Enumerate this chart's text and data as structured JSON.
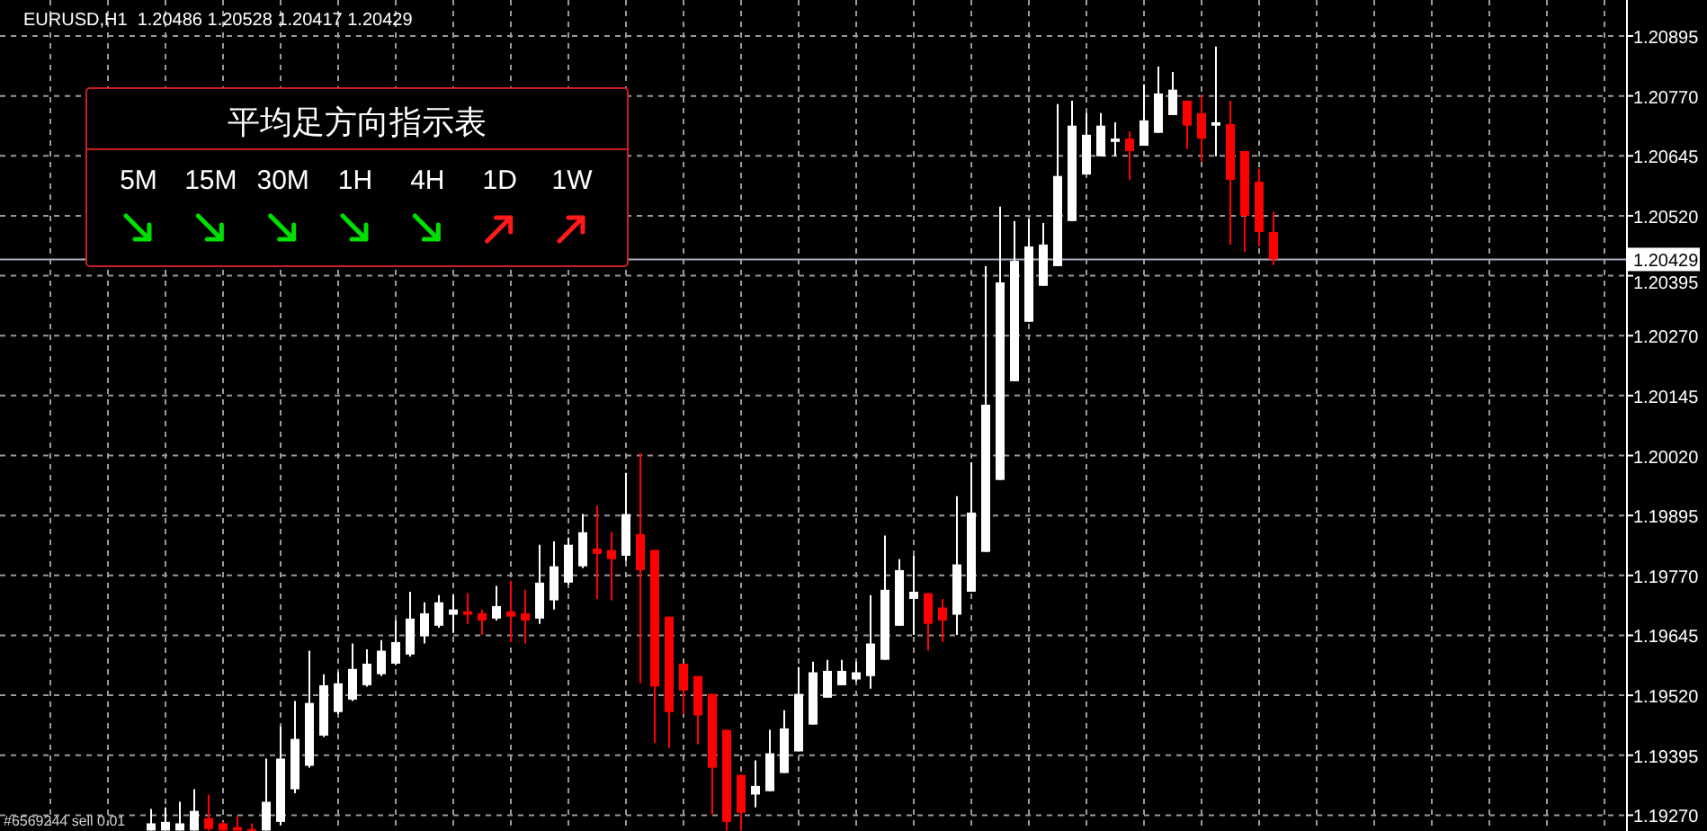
{
  "chart_data": [
    {
      "type": "candlestick",
      "title": "EURUSD,H1  1.20486 1.20528 1.20417 1.20429",
      "categories": [
        null,
        null,
        null,
        null,
        null,
        null,
        null,
        null,
        null,
        null,
        null,
        null,
        null,
        null,
        null,
        null,
        null,
        null,
        null,
        null,
        null,
        null,
        null,
        null,
        null,
        null,
        null,
        null,
        null,
        null,
        null,
        null,
        null,
        null,
        null,
        null,
        null,
        null,
        null,
        null,
        null,
        null,
        null,
        null,
        null,
        null,
        null,
        null,
        null,
        null,
        null,
        null,
        null,
        null,
        null,
        null,
        null,
        null,
        null,
        null,
        null,
        null,
        null,
        null,
        null,
        null,
        null,
        null,
        null,
        null,
        null,
        null,
        null,
        null,
        null,
        null,
        null,
        null,
        null,
        null,
        null,
        null,
        null,
        null,
        null,
        null,
        null,
        null,
        null,
        null,
        null,
        null,
        null,
        null,
        null,
        null,
        null,
        null,
        null,
        null,
        null,
        null,
        null,
        null,
        null,
        null,
        null,
        null,
        null,
        null,
        null,
        null,
        null
      ],
      "ohlc": [
        null,
        null,
        null,
        null,
        null,
        null,
        null,
        null,
        null,
        null,
        [
          1.19238,
          1.19283,
          1.19238,
          1.19253
        ],
        [
          1.19238,
          1.19286,
          1.19238,
          1.19256
        ],
        [
          1.19238,
          1.19298,
          1.19238,
          1.19253
        ],
        [
          1.19238,
          1.19324,
          1.19238,
          1.19279
        ],
        [
          1.19264,
          1.19313,
          1.19238,
          1.19241
        ],
        [
          1.19253,
          1.19256,
          1.19238,
          1.19238
        ],
        [
          1.19245,
          1.19268,
          1.19238,
          1.19238
        ],
        [
          1.19241,
          1.19253,
          1.19238,
          1.19238
        ],
        [
          1.19238,
          1.19388,
          1.19238,
          1.19298
        ],
        [
          1.19256,
          1.19455,
          1.19249,
          1.19388
        ],
        [
          1.19324,
          1.19508,
          1.19316,
          1.19429
        ],
        [
          1.19373,
          1.19613,
          1.19369,
          1.19504
        ],
        [
          1.19436,
          1.19564,
          1.19433,
          1.19541
        ],
        [
          1.19485,
          1.19568,
          1.19481,
          1.19545
        ],
        [
          1.19511,
          1.19628,
          1.19508,
          1.19575
        ],
        [
          1.19541,
          1.19616,
          1.19538,
          1.19586
        ],
        [
          1.19564,
          1.19635,
          1.1956,
          1.19613
        ],
        [
          1.19586,
          1.19676,
          1.19583,
          1.19631
        ],
        [
          1.19605,
          1.19736,
          1.19601,
          1.1968
        ],
        [
          1.19643,
          1.19714,
          1.19628,
          1.19691
        ],
        [
          1.19665,
          1.19729,
          1.19661,
          1.19714
        ],
        [
          1.19688,
          1.19729,
          1.1965,
          1.19699
        ],
        [
          1.19695,
          1.19733,
          1.19669,
          1.19688
        ],
        [
          1.19691,
          1.19699,
          1.19646,
          1.19676
        ],
        [
          1.1968,
          1.19748,
          1.19676,
          1.19706
        ],
        [
          1.19695,
          1.19759,
          1.19631,
          1.19684
        ],
        [
          1.19691,
          1.1974,
          1.19628,
          1.19676
        ],
        [
          1.1968,
          1.19834,
          1.19669,
          1.19755
        ],
        [
          1.19718,
          1.19841,
          1.19699,
          1.19789
        ],
        [
          1.19755,
          1.19849,
          1.19751,
          1.19834
        ],
        [
          1.19789,
          1.19898,
          1.19785,
          1.1986
        ],
        [
          1.19826,
          1.19916,
          1.19721,
          1.19815
        ],
        [
          1.19823,
          1.1986,
          1.19718,
          1.19804
        ],
        [
          1.19811,
          1.19984,
          1.198,
          1.19898
        ],
        [
          1.19856,
          1.20025,
          1.19545,
          1.19781
        ],
        [
          1.19823,
          1.19823,
          1.19421,
          1.19538
        ],
        [
          1.19684,
          1.19684,
          1.1941,
          1.19485
        ],
        [
          1.19586,
          1.19586,
          1.19481,
          1.1953
        ],
        [
          1.1956,
          1.1956,
          1.19418,
          1.19478
        ],
        [
          1.19523,
          1.19523,
          1.19271,
          1.19369
        ],
        [
          1.19448,
          1.19448,
          1.19238,
          1.19256
        ],
        [
          1.19354,
          1.19354,
          1.19238,
          1.19275
        ],
        [
          1.19313,
          1.19384,
          1.19286,
          1.19331
        ],
        [
          1.1932,
          1.19448,
          1.1932,
          1.19399
        ],
        [
          1.19358,
          1.19489,
          1.19358,
          1.19451
        ],
        [
          1.19403,
          1.19579,
          1.19403,
          1.19523
        ],
        [
          1.19459,
          1.1959,
          1.19459,
          1.19568
        ],
        [
          1.19515,
          1.19594,
          1.19515,
          1.19571
        ],
        [
          1.19541,
          1.19594,
          1.19541,
          1.19571
        ],
        [
          1.19553,
          1.1959,
          1.19549,
          1.19568
        ],
        [
          1.1956,
          1.19729,
          1.19534,
          1.19628
        ],
        [
          1.19594,
          1.19853,
          1.19594,
          1.1974
        ],
        [
          1.19665,
          1.19804,
          1.19665,
          1.19781
        ],
        [
          1.19721,
          1.19811,
          1.19646,
          1.19736
        ],
        [
          1.19733,
          1.19733,
          1.19613,
          1.19669
        ],
        [
          1.19703,
          1.19721,
          1.19631,
          1.19676
        ],
        [
          1.19688,
          1.19935,
          1.19646,
          1.19793
        ],
        [
          1.19736,
          1.20006,
          1.19736,
          1.19901
        ],
        [
          1.19819,
          1.20415,
          1.19819,
          1.20126
        ],
        [
          1.19969,
          1.20539,
          1.19969,
          1.20381
        ],
        [
          1.20175,
          1.20509,
          1.20175,
          1.20426
        ],
        [
          1.20299,
          1.20513,
          1.20299,
          1.20456
        ],
        [
          1.20374,
          1.20505,
          1.20374,
          1.2046
        ],
        [
          1.20415,
          1.20753,
          1.20415,
          1.20603
        ],
        [
          1.20509,
          1.2076,
          1.20509,
          1.20708
        ],
        [
          1.20606,
          1.20734,
          1.20606,
          1.20689
        ],
        [
          1.20644,
          1.20734,
          1.20644,
          1.20708
        ],
        [
          1.20674,
          1.20715,
          1.20644,
          1.20681
        ],
        [
          1.20681,
          1.20696,
          1.20595,
          1.20655
        ],
        [
          1.20666,
          1.20794,
          1.20666,
          1.20719
        ],
        [
          1.20693,
          1.20831,
          1.20693,
          1.20775
        ],
        [
          1.2073,
          1.2082,
          1.2073,
          1.20783
        ],
        [
          1.2076,
          1.2076,
          1.20659,
          1.20708
        ],
        [
          1.20734,
          1.20771,
          1.20633,
          1.20681
        ],
        [
          1.20708,
          1.20873,
          1.20644,
          1.20715
        ],
        [
          1.20711,
          1.2076,
          1.2046,
          1.20595
        ],
        [
          1.20655,
          1.20655,
          1.20445,
          1.2052
        ],
        [
          1.20591,
          1.20618,
          1.20456,
          1.20486
        ],
        [
          1.20486,
          1.20528,
          1.20417,
          1.20429
        ],
        null,
        null,
        null,
        null,
        null,
        null,
        null,
        null,
        null,
        null,
        null,
        null,
        null,
        null,
        null,
        null,
        null,
        null,
        null,
        null,
        null,
        null,
        null,
        null
      ],
      "colors": [
        null,
        null,
        null,
        null,
        null,
        null,
        null,
        null,
        null,
        null,
        "#ffffff",
        "#ffffff",
        "#ffffff",
        "#ffffff",
        "#ff0000",
        "#ff0000",
        "#ff0000",
        "#ff0000",
        "#ffffff",
        "#ffffff",
        "#ffffff",
        "#ffffff",
        "#ffffff",
        "#ffffff",
        "#ffffff",
        "#ffffff",
        "#ffffff",
        "#ffffff",
        "#ffffff",
        "#ffffff",
        "#ffffff",
        "#ffffff",
        "#ff0000",
        "#ff0000",
        "#ffffff",
        "#ff0000",
        "#ff0000",
        "#ffffff",
        "#ffffff",
        "#ffffff",
        "#ffffff",
        "#ff0000",
        "#ff0000",
        "#ffffff",
        "#ff0000",
        "#ff0000",
        "#ff0000",
        "#ff0000",
        "#ff0000",
        "#ff0000",
        "#ff0000",
        "#ff0000",
        "#ffffff",
        "#ffffff",
        "#ffffff",
        "#ffffff",
        "#ffffff",
        "#ffffff",
        "#ffffff",
        "#ffffff",
        "#ffffff",
        "#ffffff",
        "#ffffff",
        "#ffffff",
        "#ff0000",
        "#ff0000",
        "#ffffff",
        "#ffffff",
        "#ffffff",
        "#ffffff",
        "#ffffff",
        "#ffffff",
        "#ffffff",
        "#ffffff",
        "#ffffff",
        "#ffffff",
        "#ffffff",
        "#ffffff",
        "#ff0000",
        "#ffffff",
        "#ffffff",
        "#ffffff",
        "#ff0000",
        "#ff0000",
        "#ffffff",
        "#ff0000",
        "#ff0000",
        "#ff0000",
        "#ff0000",
        null,
        null,
        null,
        null,
        null,
        null,
        null,
        null,
        null,
        null,
        null,
        null,
        null,
        null,
        null,
        null,
        null,
        null,
        null,
        null,
        null,
        null,
        null,
        null
      ],
      "ylim": [
        1.19237,
        1.2097
      ],
      "yticks": [
        {
          "value": 1.1927,
          "label": "1.19270"
        },
        {
          "value": 1.19395,
          "label": "1.19395"
        },
        {
          "value": 1.1952,
          "label": "1.19520"
        },
        {
          "value": 1.19645,
          "label": "1.19645"
        },
        {
          "value": 1.1977,
          "label": "1.19770"
        },
        {
          "value": 1.19895,
          "label": "1.19895"
        },
        {
          "value": 1.2002,
          "label": "1.20020"
        },
        {
          "value": 1.20145,
          "label": "1.20145"
        },
        {
          "value": 1.2027,
          "label": "1.20270"
        },
        {
          "value": 1.20395,
          "label": "1.20395"
        },
        {
          "value": 1.2052,
          "label": "1.20520"
        },
        {
          "value": 1.20645,
          "label": "1.20645"
        },
        {
          "value": 1.2077,
          "label": "1.20770"
        },
        {
          "value": 1.20895,
          "label": "1.20895"
        }
      ],
      "grid": true,
      "ref_lines": [
        {
          "axis": "y",
          "value": 1.20429,
          "label": "1.20429",
          "color": "#a8b0c0"
        }
      ],
      "annotations": [
        "#6569244 sell 0.01"
      ]
    },
    {
      "type": "other",
      "title": "平均足方向指示表",
      "categories": [
        "5M",
        "15M",
        "30M",
        "1H",
        "4H",
        "1D",
        "1W"
      ],
      "colors": [
        "#00e000",
        "#00e000",
        "#00e000",
        "#00e000",
        "#00e000",
        "#ff1a1a",
        "#ff1a1a"
      ]
    }
  ]
}
